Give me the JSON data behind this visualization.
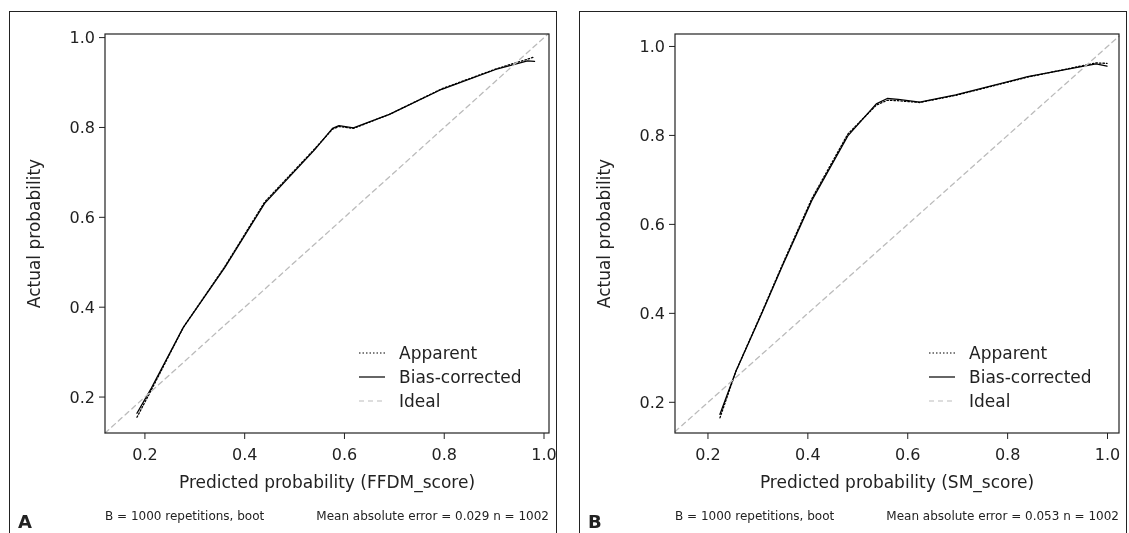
{
  "chart_data": [
    {
      "type": "line",
      "xlabel": "Predicted probability (FFDM_score)",
      "ylabel": "Actual probability",
      "xlim": [
        0.12,
        1.01
      ],
      "ylim": [
        0.12,
        1.008
      ],
      "xticks": [
        {
          "value": 0.2,
          "label": "0.2"
        },
        {
          "value": 0.4,
          "label": "0.4"
        },
        {
          "value": 0.6,
          "label": "0.6"
        },
        {
          "value": 0.8,
          "label": "0.8"
        },
        {
          "value": 1.0,
          "label": "1.0"
        }
      ],
      "yticks": [
        {
          "value": 0.2,
          "label": "0.2"
        },
        {
          "value": 0.4,
          "label": "0.4"
        },
        {
          "value": 0.6,
          "label": "0.6"
        },
        {
          "value": 0.8,
          "label": "0.8"
        },
        {
          "value": 1.0,
          "label": "1.0"
        }
      ],
      "grid": false,
      "legend": "bottom right",
      "marker": "none",
      "annotations": [
        "A",
        "B = 1000 repetitions, boot",
        "Mean absolute error = 0.029 n = 1002"
      ],
      "series": [
        {
          "name": "Apparent",
          "color": "#000000",
          "line_style": "dotted",
          "x": [
            0.184,
            0.213,
            0.277,
            0.36,
            0.44,
            0.54,
            0.576,
            0.589,
            0.618,
            0.69,
            0.795,
            0.903,
            0.967,
            0.981
          ],
          "values": [
            0.155,
            0.216,
            0.355,
            0.49,
            0.634,
            0.752,
            0.796,
            0.802,
            0.798,
            0.829,
            0.886,
            0.93,
            0.952,
            0.957
          ]
        },
        {
          "name": "Bias-corrected",
          "color": "#000000",
          "line_style": "solid",
          "x": [
            0.184,
            0.213,
            0.277,
            0.36,
            0.44,
            0.54,
            0.576,
            0.589,
            0.618,
            0.69,
            0.795,
            0.903,
            0.967,
            0.981
          ],
          "values": [
            0.164,
            0.22,
            0.355,
            0.488,
            0.631,
            0.75,
            0.798,
            0.804,
            0.799,
            0.829,
            0.885,
            0.929,
            0.948,
            0.947
          ]
        },
        {
          "name": "Ideal",
          "color": "#bbbbbb",
          "line_style": "dashed",
          "x": [
            0.12,
            1.008
          ],
          "values": [
            0.12,
            1.008
          ]
        }
      ]
    },
    {
      "type": "line",
      "xlabel": "Predicted probability (SM_score)",
      "ylabel": "Actual probability",
      "xlim": [
        0.134,
        1.023
      ],
      "ylim": [
        0.131,
        1.028
      ],
      "xticks": [
        {
          "value": 0.2,
          "label": "0.2"
        },
        {
          "value": 0.4,
          "label": "0.4"
        },
        {
          "value": 0.6,
          "label": "0.6"
        },
        {
          "value": 0.8,
          "label": "0.8"
        },
        {
          "value": 1.0,
          "label": "1.0"
        }
      ],
      "yticks": [
        {
          "value": 0.2,
          "label": "0.2"
        },
        {
          "value": 0.4,
          "label": "0.4"
        },
        {
          "value": 0.6,
          "label": "0.6"
        },
        {
          "value": 0.8,
          "label": "0.8"
        },
        {
          "value": 1.0,
          "label": "1.0"
        }
      ],
      "grid": false,
      "legend": "bottom right",
      "marker": "none",
      "annotations": [
        "B",
        "B = 1000 repetitions, boot",
        "Mean absolute error = 0.053 n = 1002"
      ],
      "series": [
        {
          "name": "Apparent",
          "color": "#000000",
          "line_style": "dotted",
          "x": [
            0.224,
            0.256,
            0.307,
            0.35,
            0.408,
            0.48,
            0.537,
            0.559,
            0.581,
            0.624,
            0.696,
            0.84,
            0.977,
            0.999
          ],
          "values": [
            0.165,
            0.27,
            0.4,
            0.512,
            0.658,
            0.803,
            0.868,
            0.879,
            0.878,
            0.874,
            0.89,
            0.931,
            0.963,
            0.962
          ]
        },
        {
          "name": "Bias-corrected",
          "color": "#000000",
          "line_style": "solid",
          "x": [
            0.224,
            0.256,
            0.307,
            0.35,
            0.408,
            0.48,
            0.537,
            0.559,
            0.581,
            0.624,
            0.696,
            0.84,
            0.977,
            0.999
          ],
          "values": [
            0.173,
            0.27,
            0.398,
            0.509,
            0.654,
            0.799,
            0.871,
            0.883,
            0.881,
            0.875,
            0.891,
            0.932,
            0.961,
            0.956
          ]
        },
        {
          "name": "Ideal",
          "color": "#bbbbbb",
          "line_style": "dashed",
          "x": [
            0.134,
            1.023
          ],
          "values": [
            0.134,
            1.023
          ]
        }
      ]
    }
  ]
}
